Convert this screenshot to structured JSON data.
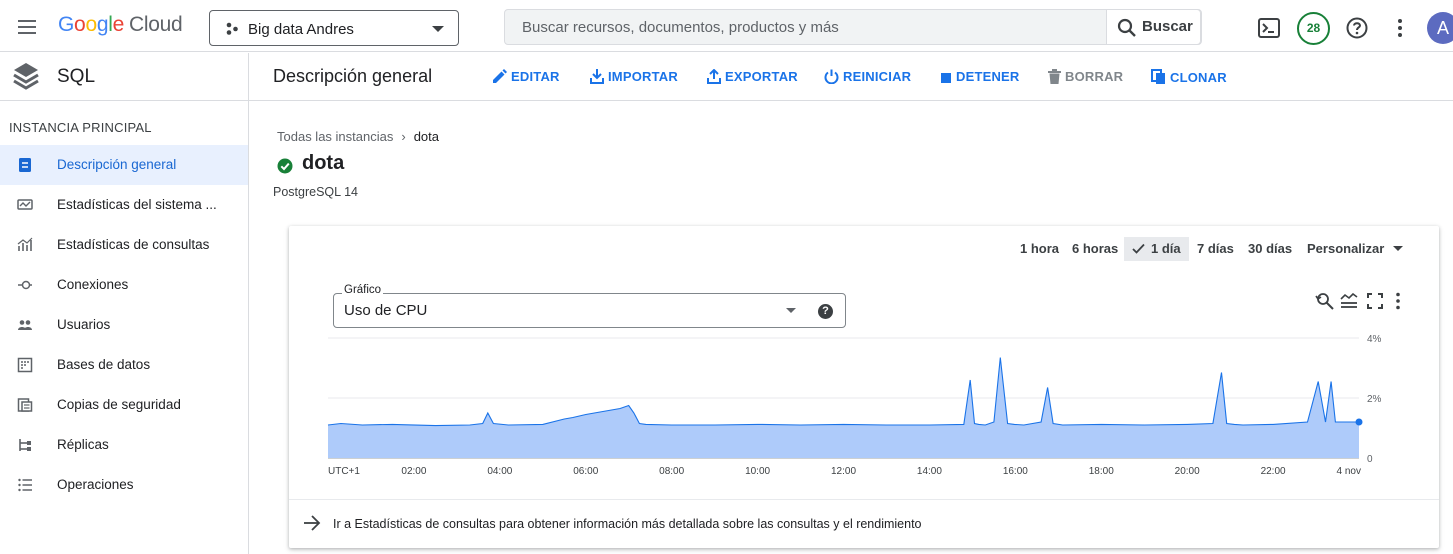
{
  "app": {
    "logo_google": "Google",
    "logo_cloud": "Cloud",
    "project": "Big data Andres",
    "search_placeholder": "Buscar recursos, documentos, productos y más",
    "search_button": "Buscar",
    "notifications_count": "28",
    "avatar_letter": "A"
  },
  "sidebar": {
    "product": "SQL",
    "section": "INSTANCIA PRINCIPAL",
    "items": [
      {
        "label": "Descripción general",
        "icon": "overview-icon",
        "active": true
      },
      {
        "label": "Estadísticas del sistema ...",
        "icon": "system-insights-icon"
      },
      {
        "label": "Estadísticas de consultas",
        "icon": "query-insights-icon"
      },
      {
        "label": "Conexiones",
        "icon": "connections-icon"
      },
      {
        "label": "Usuarios",
        "icon": "users-icon"
      },
      {
        "label": "Bases de datos",
        "icon": "databases-icon"
      },
      {
        "label": "Copias de seguridad",
        "icon": "backups-icon"
      },
      {
        "label": "Réplicas",
        "icon": "replicas-icon"
      },
      {
        "label": "Operaciones",
        "icon": "operations-icon"
      }
    ]
  },
  "header": {
    "title": "Descripción general",
    "actions": {
      "edit": "EDITAR",
      "import": "IMPORTAR",
      "export": "EXPORTAR",
      "restart": "REINICIAR",
      "stop": "DETENER",
      "delete": "BORRAR",
      "clone": "CLONAR"
    }
  },
  "breadcrumb": {
    "parent": "Todas las instancias",
    "current": "dota"
  },
  "instance": {
    "name": "dota",
    "status": "running",
    "version": "PostgreSQL 14"
  },
  "time_ranges": {
    "r1": "1 hora",
    "r6": "6 horas",
    "r1d": "1 día",
    "r7": "7 días",
    "r30": "30 días",
    "custom": "Personalizar",
    "selected": "1 día"
  },
  "chart_select": {
    "legend": "Gráfico",
    "value": "Uso de CPU"
  },
  "chart_data": {
    "type": "area",
    "title": "Uso de CPU",
    "x_tick_labels": [
      "UTC+1",
      "02:00",
      "04:00",
      "06:00",
      "08:00",
      "10:00",
      "12:00",
      "14:00",
      "16:00",
      "18:00",
      "20:00",
      "22:00",
      "4 nov"
    ],
    "y_tick_labels": [
      "4%",
      "2%",
      "0"
    ],
    "ylim": [
      0,
      4
    ],
    "y_unit": "%",
    "x_unit": "hours since UTC+1 start",
    "xlim": [
      0,
      24
    ],
    "series": [
      {
        "color": "#1a73e8",
        "fill": "#aecbfa",
        "x": [
          0,
          0.3,
          0.8,
          1.5,
          2.5,
          3.3,
          3.6,
          3.72,
          3.85,
          4.2,
          5.0,
          5.5,
          5.7,
          6.0,
          6.4,
          6.8,
          7.0,
          7.12,
          7.25,
          7.4,
          8.0,
          9.0,
          10.0,
          11.0,
          12.0,
          13.0,
          14.0,
          14.8,
          14.95,
          15.05,
          15.15,
          15.3,
          15.5,
          15.65,
          15.82,
          15.98,
          16.2,
          16.6,
          16.75,
          16.88,
          17.1,
          18.0,
          19.0,
          20.0,
          20.6,
          20.8,
          20.92,
          21.1,
          21.3,
          22.0,
          22.8,
          23.05,
          23.22,
          23.35,
          23.45,
          23.55,
          23.7,
          24.0
        ],
        "y": [
          1.1,
          1.15,
          1.1,
          1.12,
          1.08,
          1.1,
          1.15,
          1.5,
          1.15,
          1.1,
          1.12,
          1.3,
          1.35,
          1.45,
          1.55,
          1.65,
          1.75,
          1.5,
          1.15,
          1.12,
          1.1,
          1.1,
          1.12,
          1.1,
          1.12,
          1.1,
          1.1,
          1.12,
          2.6,
          1.15,
          1.12,
          1.1,
          1.2,
          3.35,
          1.15,
          1.12,
          1.1,
          1.2,
          2.35,
          1.15,
          1.1,
          1.12,
          1.1,
          1.12,
          1.15,
          2.85,
          1.15,
          1.12,
          1.1,
          1.12,
          1.2,
          2.55,
          1.2,
          2.55,
          1.2,
          1.2,
          1.2,
          1.2
        ]
      }
    ],
    "grid": true,
    "legend": "none"
  },
  "footer": {
    "text": "Ir a Estadísticas de consultas para obtener información más detallada sobre las consultas y el rendimiento"
  },
  "colors": {
    "accent": "#1a73e8",
    "status_ok": "#188038",
    "border": "#dadce0"
  }
}
